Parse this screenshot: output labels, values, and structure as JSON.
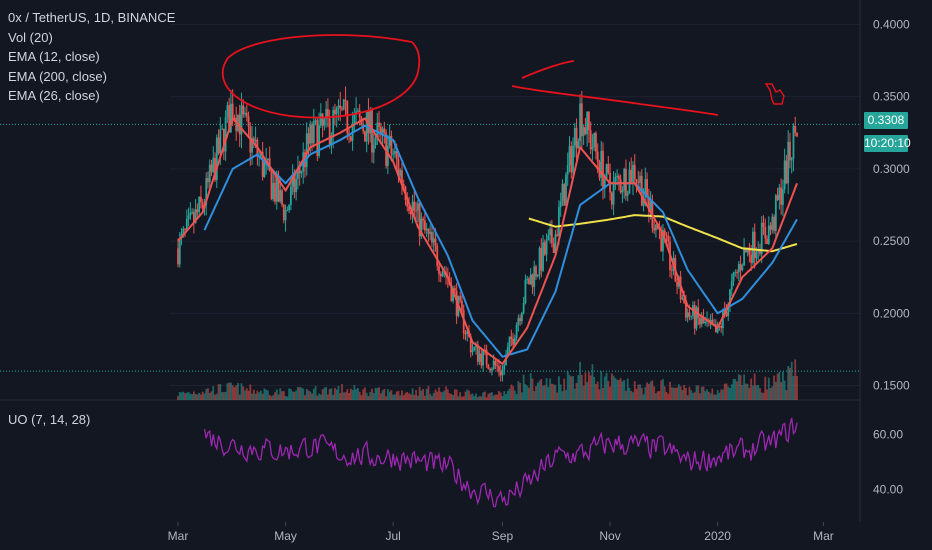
{
  "legend": {
    "title": "0x / TetherUS, 1D, BINANCE",
    "vol": "Vol (20)",
    "ema12": "EMA (12, close)",
    "ema200": "EMA (200, close)",
    "ema26": "EMA (26, close)"
  },
  "uo_legend": "UO (7, 14, 28)",
  "last_price": "0.3308",
  "countdown": "10:20:10",
  "colors": {
    "background": "#131722",
    "up": "#26a69a",
    "down": "#ef5350",
    "ema12": "#ef5350",
    "ema26": "#2f8fdd",
    "ema200": "#f0e14a",
    "uo": "#9c27b0",
    "annotation": "#e8121c"
  },
  "chart_data": {
    "type": "line",
    "price_axis": {
      "ticks": [
        "0.4000",
        "0.3500",
        "0.3000",
        "0.2500",
        "0.2000",
        "0.1500"
      ],
      "range": [
        0.14,
        0.41
      ]
    },
    "uo_axis": {
      "ticks": [
        "60.00",
        "40.00"
      ],
      "range": [
        28,
        72
      ]
    },
    "time_axis": [
      "Mar",
      "May",
      "Jul",
      "Sep",
      "Nov",
      "2020",
      "Mar"
    ],
    "dates": [
      "2019-03-01",
      "2019-03-15",
      "2019-04-01",
      "2019-04-15",
      "2019-05-01",
      "2019-05-15",
      "2019-06-01",
      "2019-06-15",
      "2019-07-01",
      "2019-07-15",
      "2019-08-01",
      "2019-08-15",
      "2019-09-01",
      "2019-09-15",
      "2019-10-01",
      "2019-10-15",
      "2019-11-01",
      "2019-11-15",
      "2019-12-01",
      "2019-12-15",
      "2020-01-01",
      "2020-01-15",
      "2020-02-01",
      "2020-02-15"
    ],
    "series": [
      {
        "name": "close",
        "values": [
          0.245,
          0.275,
          0.345,
          0.31,
          0.27,
          0.32,
          0.335,
          0.33,
          0.31,
          0.265,
          0.225,
          0.175,
          0.16,
          0.22,
          0.255,
          0.34,
          0.285,
          0.3,
          0.25,
          0.2,
          0.185,
          0.24,
          0.26,
          0.3308
        ]
      },
      {
        "name": "EMA (12, close)",
        "values": [
          0.25,
          0.27,
          0.335,
          0.315,
          0.285,
          0.315,
          0.325,
          0.335,
          0.305,
          0.26,
          0.225,
          0.18,
          0.165,
          0.19,
          0.24,
          0.315,
          0.29,
          0.29,
          0.255,
          0.205,
          0.19,
          0.225,
          0.245,
          0.29
        ]
      },
      {
        "name": "EMA (26, close)",
        "values": [
          null,
          0.255,
          0.3,
          0.31,
          0.29,
          0.31,
          0.32,
          0.33,
          0.32,
          0.28,
          0.24,
          0.195,
          0.17,
          0.175,
          0.215,
          0.275,
          0.29,
          0.29,
          0.27,
          0.23,
          0.2,
          0.21,
          0.235,
          0.265
        ]
      },
      {
        "name": "EMA (200, close)",
        "values": [
          null,
          null,
          null,
          null,
          null,
          null,
          null,
          null,
          null,
          null,
          null,
          null,
          null,
          0.266,
          0.26,
          0.262,
          0.265,
          0.268,
          0.267,
          0.26,
          0.252,
          0.245,
          0.243,
          0.248
        ]
      },
      {
        "name": "UO",
        "values": [
          null,
          60,
          56,
          55,
          54,
          56,
          53,
          52,
          52,
          50,
          48,
          40,
          36,
          42,
          52,
          53,
          57,
          56,
          55,
          50,
          52,
          54,
          57,
          64
        ]
      }
    ],
    "volume": [
      0.2,
      0.3,
      0.4,
      0.3,
      0.25,
      0.3,
      0.35,
      0.3,
      0.25,
      0.3,
      0.3,
      0.2,
      0.2,
      0.6,
      0.5,
      0.9,
      0.6,
      0.4,
      0.45,
      0.35,
      0.3,
      0.6,
      0.5,
      0.9
    ],
    "price_lines": [
      0.3308,
      0.16
    ]
  }
}
